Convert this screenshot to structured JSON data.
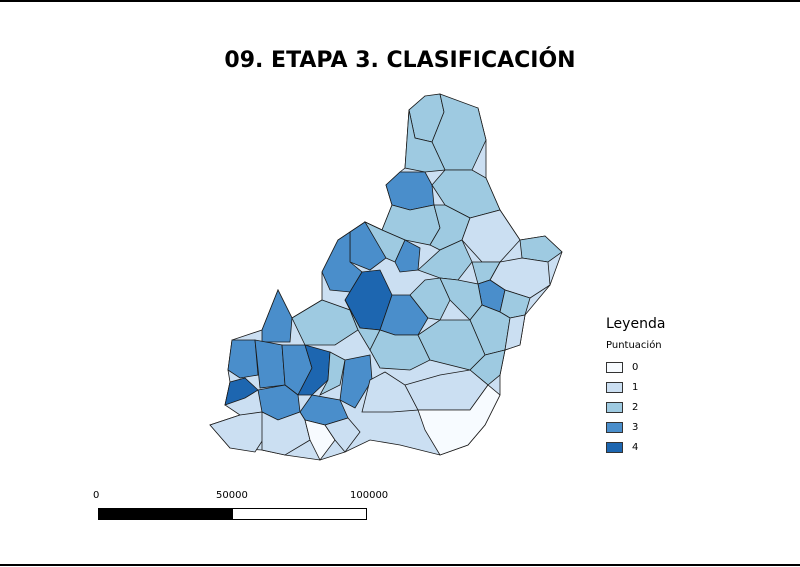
{
  "title": "09. ETAPA 3. CLASIFICACIÓN",
  "legend": {
    "title": "Leyenda",
    "subtitle": "Puntuación",
    "items": [
      {
        "label": "0",
        "color": "#f7fbff"
      },
      {
        "label": "1",
        "color": "#cbdff2"
      },
      {
        "label": "2",
        "color": "#9ecae1"
      },
      {
        "label": "3",
        "color": "#4a8ecb"
      },
      {
        "label": "4",
        "color": "#1d66b0"
      }
    ]
  },
  "scale": {
    "labels": [
      "0",
      "50000",
      "100000"
    ],
    "colors": [
      "#000000",
      "#ffffff"
    ]
  },
  "colors": {
    "border": "#1a1a1a",
    "class_0": "#f7fbff",
    "class_1": "#cbdff2",
    "class_2": "#9ecae1",
    "class_3": "#4a8ecb",
    "class_4": "#1d66b0"
  }
}
